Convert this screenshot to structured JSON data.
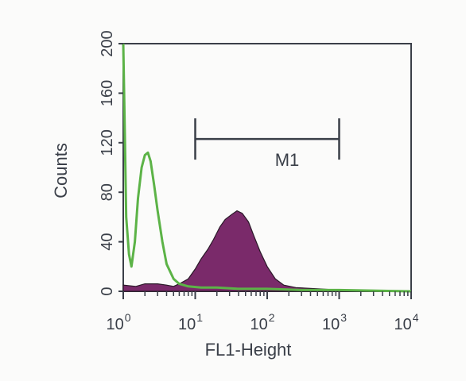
{
  "chart_data": {
    "type": "area",
    "title": "",
    "xlabel": "FL1-Height",
    "ylabel": "Counts",
    "x_scale": "log",
    "xlim": [
      1,
      10000
    ],
    "ylim": [
      0,
      200
    ],
    "x_ticks": [
      {
        "base": "10",
        "exp": "0"
      },
      {
        "base": "10",
        "exp": "1"
      },
      {
        "base": "10",
        "exp": "2"
      },
      {
        "base": "10",
        "exp": "3"
      },
      {
        "base": "10",
        "exp": "4"
      }
    ],
    "y_ticks": [
      "0",
      "40",
      "80",
      "120",
      "160",
      "200"
    ],
    "grid": false,
    "series": [
      {
        "style": "filled",
        "color": "#7a2a6a",
        "points": [
          [
            1,
            5
          ],
          [
            1.5,
            4
          ],
          [
            2,
            6
          ],
          [
            3,
            6
          ],
          [
            4,
            5
          ],
          [
            5,
            4
          ],
          [
            6,
            6
          ],
          [
            8,
            10
          ],
          [
            10,
            18
          ],
          [
            12,
            26
          ],
          [
            15,
            34
          ],
          [
            18,
            42
          ],
          [
            22,
            52
          ],
          [
            26,
            58
          ],
          [
            32,
            62
          ],
          [
            38,
            65
          ],
          [
            45,
            63
          ],
          [
            55,
            56
          ],
          [
            65,
            45
          ],
          [
            80,
            32
          ],
          [
            100,
            20
          ],
          [
            130,
            10
          ],
          [
            170,
            5
          ],
          [
            250,
            3
          ],
          [
            500,
            2
          ],
          [
            1000,
            1
          ],
          [
            10000,
            0
          ]
        ]
      },
      {
        "style": "outline",
        "color": "#5cb347",
        "points": [
          [
            1,
            200
          ],
          [
            1.05,
            130
          ],
          [
            1.1,
            60
          ],
          [
            1.2,
            30
          ],
          [
            1.3,
            20
          ],
          [
            1.45,
            40
          ],
          [
            1.6,
            75
          ],
          [
            1.8,
            100
          ],
          [
            2,
            110
          ],
          [
            2.2,
            112
          ],
          [
            2.4,
            105
          ],
          [
            2.7,
            85
          ],
          [
            3,
            65
          ],
          [
            3.5,
            40
          ],
          [
            4,
            22
          ],
          [
            5,
            10
          ],
          [
            6,
            6
          ],
          [
            8,
            4
          ],
          [
            12,
            3
          ],
          [
            20,
            3
          ],
          [
            40,
            2
          ],
          [
            100,
            2
          ],
          [
            300,
            1
          ],
          [
            1000,
            1
          ],
          [
            10000,
            0
          ]
        ]
      }
    ],
    "markers": [
      {
        "label": "M1",
        "x_start": 10,
        "x_end": 1000,
        "y": 123
      }
    ]
  },
  "colors": {
    "axis": "#3a3f48",
    "filled_series": "#7a2a6a",
    "outline_series": "#5cb347"
  }
}
